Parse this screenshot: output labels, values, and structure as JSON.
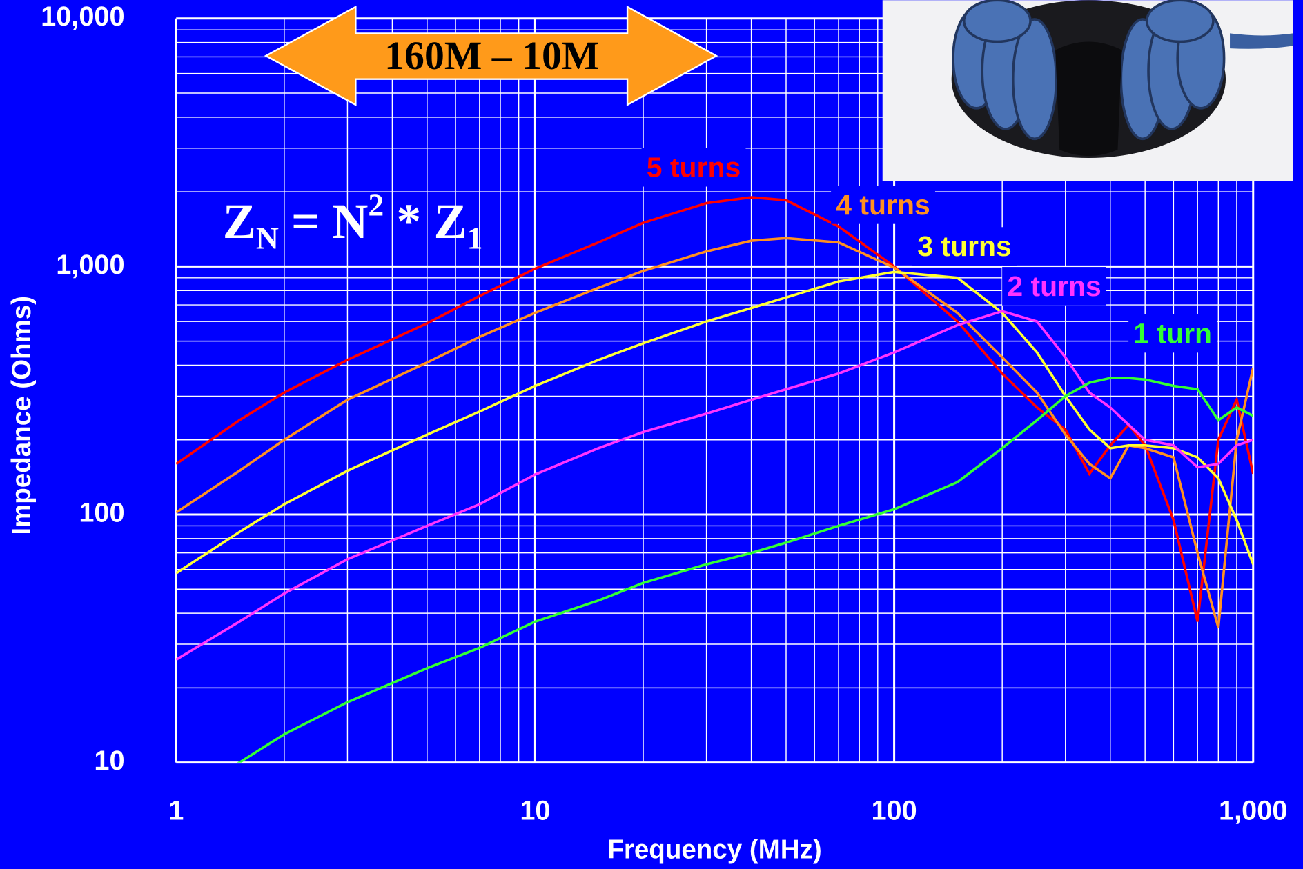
{
  "chart_data": {
    "type": "line",
    "xlabel": "Frequency  (MHz)",
    "ylabel": "Impedance  (Ohms)",
    "xscale": "log",
    "yscale": "log",
    "grid": true,
    "minor_grid": true,
    "xlim": [
      1,
      1000
    ],
    "ylim": [
      10,
      10000
    ],
    "xticks": [
      1,
      10,
      100,
      {
        "value": 1000,
        "label": "1,000"
      }
    ],
    "yticks": [
      10,
      100,
      {
        "value": 1000,
        "label": "1,000"
      },
      {
        "value": 10000,
        "label": "10,000"
      }
    ],
    "annotations": {
      "band": "160M – 10M",
      "formula": [
        "Z",
        "N",
        " = N",
        "2",
        " * Z",
        "1"
      ]
    },
    "x": [
      1,
      1.5,
      2,
      3,
      5,
      7,
      10,
      15,
      20,
      30,
      40,
      50,
      70,
      100,
      150,
      200,
      250,
      300,
      350,
      400,
      450,
      500,
      600,
      700,
      800,
      900,
      1000
    ],
    "series": [
      {
        "name": "5 turns",
        "color": "#ff0000",
        "values": [
          160,
          240,
          310,
          420,
          590,
          760,
          980,
          1250,
          1500,
          1800,
          1900,
          1850,
          1450,
          1000,
          600,
          370,
          270,
          220,
          146,
          190,
          230,
          190,
          95,
          37,
          200,
          290,
          146
        ]
      },
      {
        "name": "4 turns",
        "color": "#ff9020",
        "values": [
          102,
          150,
          200,
          290,
          410,
          520,
          650,
          820,
          960,
          1150,
          1270,
          1300,
          1250,
          990,
          650,
          430,
          310,
          210,
          160,
          140,
          190,
          185,
          170,
          70,
          35,
          200,
          390
        ]
      },
      {
        "name": "3 turns",
        "color": "#ffff33",
        "values": [
          58,
          85,
          110,
          150,
          210,
          260,
          330,
          420,
          490,
          600,
          680,
          750,
          870,
          950,
          900,
          650,
          450,
          300,
          220,
          185,
          190,
          190,
          185,
          170,
          140,
          95,
          63
        ]
      },
      {
        "name": "2 turns",
        "color": "#ff33ff",
        "values": [
          26,
          37,
          48,
          66,
          90,
          110,
          145,
          185,
          215,
          255,
          290,
          320,
          370,
          450,
          580,
          660,
          600,
          430,
          310,
          270,
          230,
          200,
          190,
          155,
          160,
          190,
          200
        ]
      },
      {
        "name": "1 turn",
        "color": "#33ff33",
        "values": [
          7,
          10,
          13,
          17.5,
          24,
          29,
          37,
          45,
          53,
          63,
          70,
          77,
          90,
          105,
          135,
          185,
          240,
          300,
          340,
          355,
          355,
          350,
          330,
          320,
          240,
          270,
          250
        ]
      }
    ]
  }
}
